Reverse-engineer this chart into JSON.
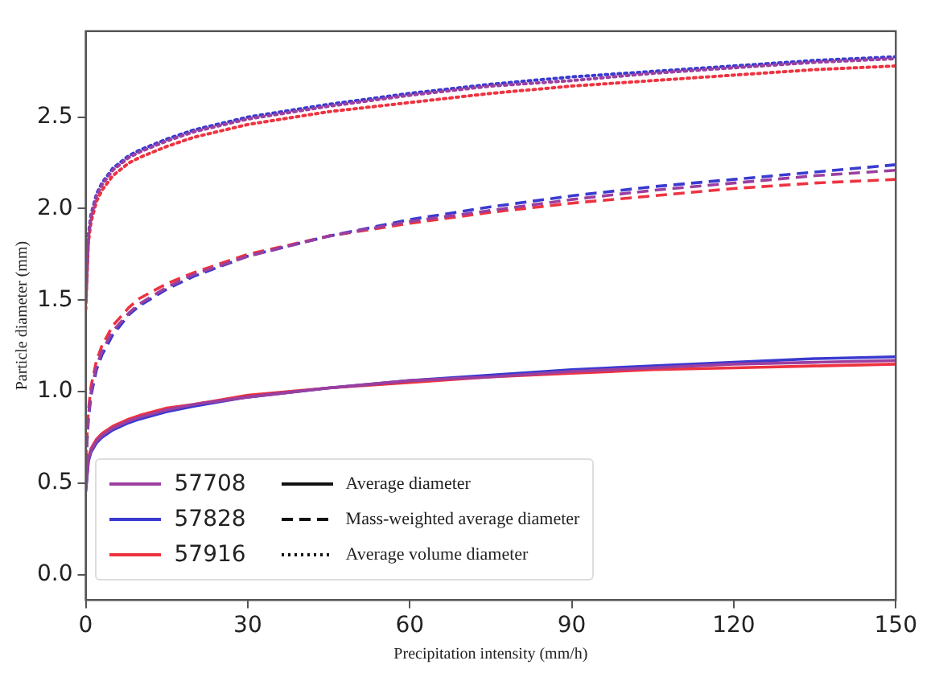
{
  "chart_data": {
    "type": "line",
    "xlabel": "Precipitation intensity (mm/h)",
    "ylabel": "Particle diameter (mm)",
    "x": [
      0,
      0.5,
      1,
      2,
      3,
      5,
      8,
      10,
      15,
      20,
      30,
      45,
      60,
      75,
      90,
      105,
      120,
      135,
      150
    ],
    "xlim": [
      0,
      150
    ],
    "xticks": [
      0,
      30,
      60,
      90,
      120,
      150
    ],
    "ylim": [
      -0.14,
      2.97
    ],
    "yticks": [
      {
        "value": 0,
        "label": "0.0"
      },
      0.5,
      {
        "value": 1,
        "label": "1.0"
      },
      1.5,
      {
        "value": 2,
        "label": "2.0"
      },
      2.5
    ],
    "grid": false,
    "legend": "bottom left",
    "marker": "none",
    "annotations": [
      "Average diameter",
      "Mass-weighted average diameter",
      "Average volume diameter"
    ],
    "series": [
      {
        "name": "57708",
        "color": "#9b3fa0",
        "line_style": "solid",
        "values": [
          0.46,
          0.63,
          0.68,
          0.73,
          0.76,
          0.8,
          0.84,
          0.86,
          0.9,
          0.93,
          0.97,
          1.02,
          1.06,
          1.08,
          1.11,
          1.13,
          1.15,
          1.16,
          1.17
        ]
      },
      {
        "name": "57828",
        "color": "#3a3ad0",
        "line_style": "solid",
        "values": [
          0.45,
          0.62,
          0.67,
          0.72,
          0.75,
          0.79,
          0.83,
          0.85,
          0.89,
          0.92,
          0.97,
          1.02,
          1.06,
          1.09,
          1.12,
          1.14,
          1.16,
          1.18,
          1.19
        ]
      },
      {
        "name": "57916",
        "color": "#ee3340",
        "line_style": "solid",
        "values": [
          0.47,
          0.64,
          0.69,
          0.74,
          0.77,
          0.81,
          0.85,
          0.87,
          0.91,
          0.93,
          0.98,
          1.02,
          1.05,
          1.08,
          1.1,
          1.12,
          1.13,
          1.14,
          1.15
        ]
      },
      {
        "color": "#9b3fa0",
        "line_style": "dashed",
        "values": [
          0.6,
          0.87,
          1.0,
          1.14,
          1.22,
          1.33,
          1.43,
          1.48,
          1.57,
          1.64,
          1.74,
          1.85,
          1.93,
          1.99,
          2.05,
          2.1,
          2.14,
          2.18,
          2.21
        ]
      },
      {
        "color": "#3a3ad0",
        "line_style": "dashed",
        "values": [
          0.6,
          0.85,
          0.98,
          1.12,
          1.2,
          1.31,
          1.42,
          1.47,
          1.56,
          1.63,
          1.74,
          1.85,
          1.94,
          2.01,
          2.07,
          2.12,
          2.16,
          2.2,
          2.24
        ]
      },
      {
        "color": "#ee3340",
        "line_style": "dashed",
        "values": [
          0.62,
          0.9,
          1.03,
          1.17,
          1.25,
          1.36,
          1.46,
          1.51,
          1.59,
          1.65,
          1.75,
          1.85,
          1.92,
          1.98,
          2.03,
          2.07,
          2.11,
          2.14,
          2.16
        ]
      },
      {
        "color": "#9b3fa0",
        "line_style": "dotted",
        "values": [
          1.5,
          1.85,
          1.96,
          2.07,
          2.13,
          2.21,
          2.28,
          2.31,
          2.37,
          2.42,
          2.49,
          2.56,
          2.62,
          2.67,
          2.7,
          2.74,
          2.77,
          2.8,
          2.82
        ]
      },
      {
        "color": "#3a3ad0",
        "line_style": "dotted",
        "values": [
          1.5,
          1.86,
          1.97,
          2.08,
          2.14,
          2.22,
          2.29,
          2.32,
          2.38,
          2.43,
          2.5,
          2.57,
          2.63,
          2.68,
          2.72,
          2.75,
          2.78,
          2.81,
          2.83
        ]
      },
      {
        "color": "#ee3340",
        "line_style": "dotted",
        "values": [
          1.45,
          1.82,
          1.93,
          2.04,
          2.1,
          2.18,
          2.25,
          2.28,
          2.34,
          2.39,
          2.46,
          2.53,
          2.58,
          2.63,
          2.67,
          2.7,
          2.73,
          2.76,
          2.78
        ]
      }
    ]
  }
}
